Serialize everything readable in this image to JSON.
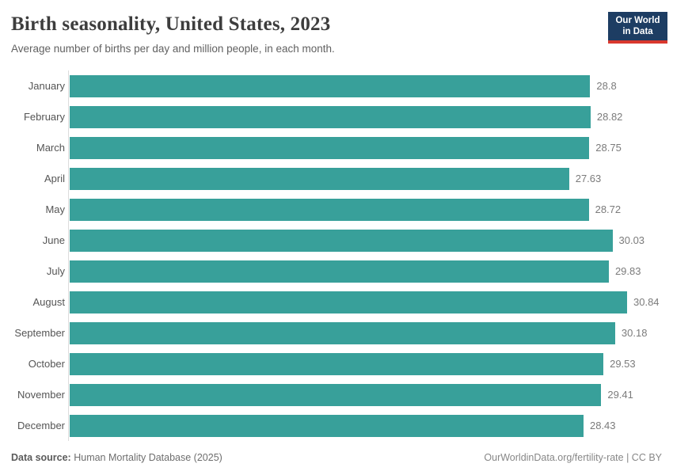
{
  "header": {
    "title": "Birth seasonality, United States, 2023",
    "subtitle": "Average number of births per day and million people, in each month.",
    "logo": {
      "line1": "Our World",
      "line2": "in Data"
    }
  },
  "chart_data": {
    "type": "bar",
    "orientation": "horizontal",
    "title": "Birth seasonality, United States, 2023",
    "subtitle": "Average number of births per day and million people, in each month.",
    "categories": [
      "January",
      "February",
      "March",
      "April",
      "May",
      "June",
      "July",
      "August",
      "September",
      "October",
      "November",
      "December"
    ],
    "values": [
      28.8,
      28.82,
      28.75,
      27.63,
      28.72,
      30.03,
      29.83,
      30.84,
      30.18,
      29.53,
      29.41,
      28.43
    ],
    "value_labels": [
      "28.8",
      "28.82",
      "28.75",
      "27.63",
      "28.72",
      "30.03",
      "29.83",
      "30.84",
      "30.18",
      "29.53",
      "29.41",
      "28.43"
    ],
    "xlabel": "",
    "ylabel": "",
    "xlim": [
      0,
      30.84
    ],
    "grid": false,
    "legend": false,
    "bar_color": "#38a09a"
  },
  "footer": {
    "datasource_label": "Data source:",
    "datasource_value": "Human Mortality Database (2025)",
    "attribution": "OurWorldinData.org/fertility-rate | CC BY"
  },
  "colors": {
    "bar": "#38a09a",
    "logo_navy": "#1d3d63",
    "logo_red": "#d9382e",
    "axis_line": "#dcdcdc"
  }
}
